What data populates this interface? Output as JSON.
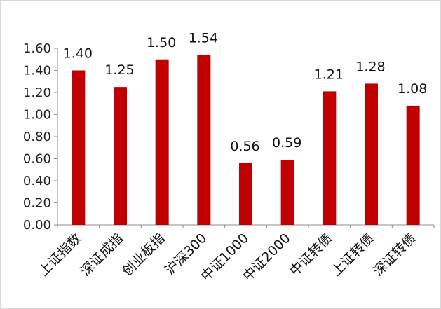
{
  "chart_data": {
    "type": "bar",
    "title": "",
    "xlabel": "",
    "ylabel": "",
    "categories": [
      "上证指数",
      "深证成指",
      "创业板指",
      "沪深300",
      "中证1000",
      "中证2000",
      "中证转债",
      "上证转债",
      "深证转债"
    ],
    "values": [
      1.4,
      1.25,
      1.5,
      1.54,
      0.56,
      0.59,
      1.21,
      1.28,
      1.08
    ],
    "data_labels": [
      "1.40",
      "1.25",
      "1.50",
      "1.54",
      "0.56",
      "0.59",
      "1.21",
      "1.28",
      "1.08"
    ],
    "ylim": [
      0,
      1.6
    ],
    "yticks": [
      "0.00",
      "0.20",
      "0.40",
      "0.60",
      "0.80",
      "1.00",
      "1.20",
      "1.40",
      "1.60"
    ],
    "grid": false,
    "legend": "none",
    "bar_color": "#c00000"
  }
}
